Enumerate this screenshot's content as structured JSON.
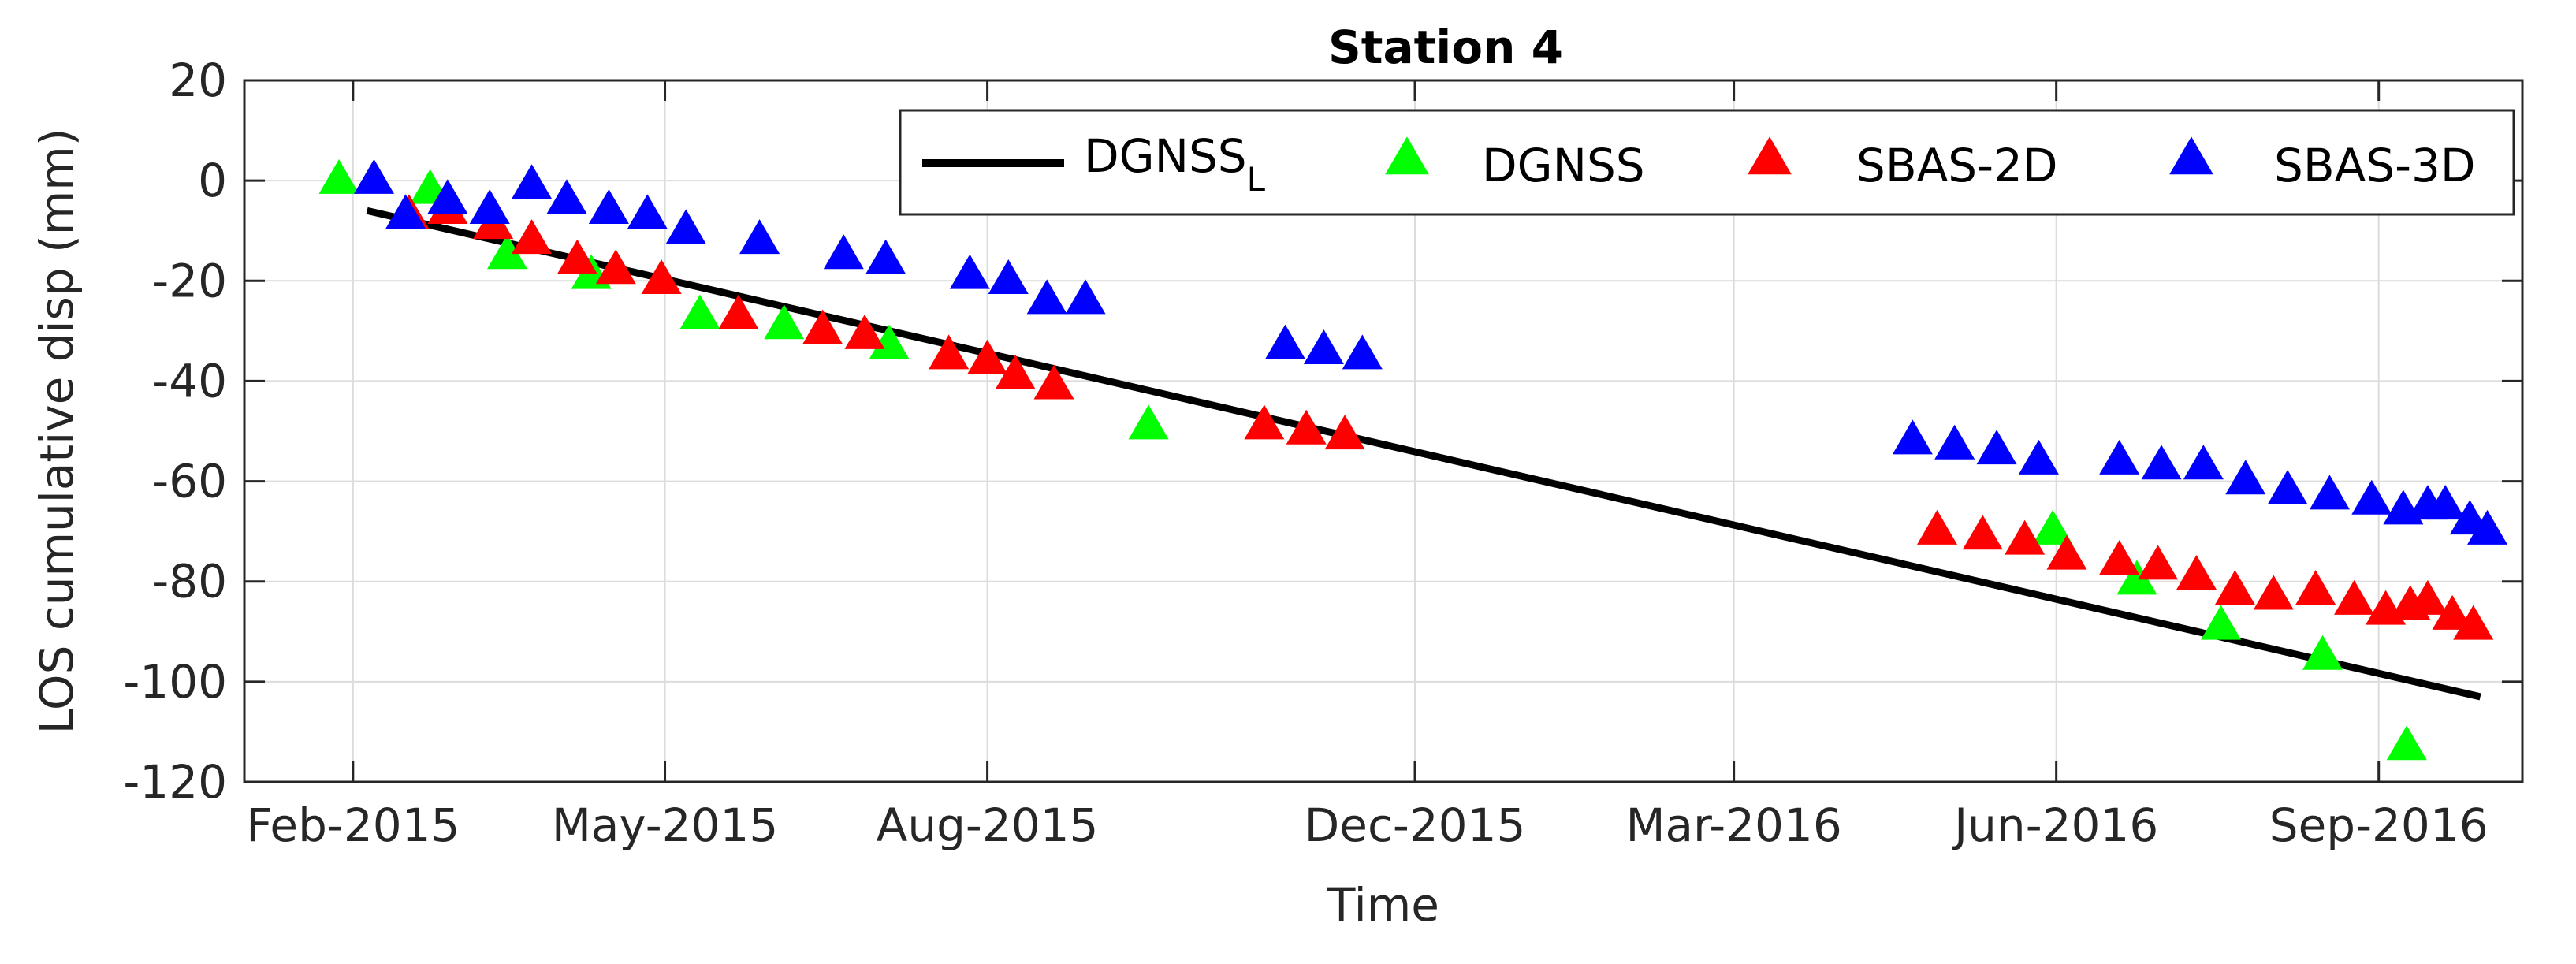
{
  "chart_data": {
    "type": "scatter",
    "title": "Station 4",
    "xlabel": "Time",
    "ylabel": "LOS cumulative disp (mm)",
    "x_axis": "date",
    "xlim": [
      "2015-01-01",
      "2016-10-12"
    ],
    "ylim": [
      -120,
      20
    ],
    "grid": true,
    "legend_placement": "top-right",
    "x_ticks": [
      {
        "date": "2015-02-01",
        "label": "Feb-2015"
      },
      {
        "date": "2015-05-01",
        "label": "May-2015"
      },
      {
        "date": "2015-08-01",
        "label": "Aug-2015"
      },
      {
        "date": "2015-12-01",
        "label": "Dec-2015"
      },
      {
        "date": "2016-03-01",
        "label": "Mar-2016"
      },
      {
        "date": "2016-06-01",
        "label": "Jun-2016"
      },
      {
        "date": "2016-09-01",
        "label": "Sep-2016"
      }
    ],
    "y_ticks": [
      20,
      0,
      -20,
      -40,
      -60,
      -80,
      -100,
      -120
    ],
    "legend": [
      {
        "name": "DGNSS",
        "subscript": "L",
        "marker": "line"
      },
      {
        "name": "DGNSS",
        "marker": "triangle"
      },
      {
        "name": "SBAS-2D",
        "marker": "triangle"
      },
      {
        "name": "SBAS-3D",
        "marker": "triangle"
      }
    ],
    "series": [
      {
        "name": "DGNSS_L",
        "kind": "line",
        "color": "#000000",
        "points": [
          {
            "x": "2015-02-05",
            "y": -6
          },
          {
            "x": "2016-09-30",
            "y": -103
          }
        ]
      },
      {
        "name": "DGNSS",
        "kind": "marker",
        "color": "#00ff00",
        "points": [
          {
            "x": "2015-01-28",
            "y": 0
          },
          {
            "x": "2015-02-23",
            "y": -2
          },
          {
            "x": "2015-03-17",
            "y": -15
          },
          {
            "x": "2015-04-10",
            "y": -19
          },
          {
            "x": "2015-05-11",
            "y": -27
          },
          {
            "x": "2015-06-04",
            "y": -29
          },
          {
            "x": "2015-07-04",
            "y": -33
          },
          {
            "x": "2015-09-16",
            "y": -49
          },
          {
            "x": "2016-05-31",
            "y": -70
          },
          {
            "x": "2016-06-24",
            "y": -80
          },
          {
            "x": "2016-07-18",
            "y": -89
          },
          {
            "x": "2016-08-16",
            "y": -95
          },
          {
            "x": "2016-09-09",
            "y": -113
          }
        ]
      },
      {
        "name": "SBAS-2D",
        "kind": "marker",
        "color": "#ff0000",
        "points": [
          {
            "x": "2015-02-17",
            "y": -7
          },
          {
            "x": "2015-02-28",
            "y": -6
          },
          {
            "x": "2015-03-13",
            "y": -9
          },
          {
            "x": "2015-03-24",
            "y": -12
          },
          {
            "x": "2015-04-06",
            "y": -16
          },
          {
            "x": "2015-04-17",
            "y": -18
          },
          {
            "x": "2015-04-30",
            "y": -20
          },
          {
            "x": "2015-05-22",
            "y": -27
          },
          {
            "x": "2015-06-15",
            "y": -30
          },
          {
            "x": "2015-06-27",
            "y": -31
          },
          {
            "x": "2015-07-21",
            "y": -35
          },
          {
            "x": "2015-08-01",
            "y": -36
          },
          {
            "x": "2015-08-09",
            "y": -39
          },
          {
            "x": "2015-08-20",
            "y": -41
          },
          {
            "x": "2015-10-19",
            "y": -49
          },
          {
            "x": "2015-10-31",
            "y": -50
          },
          {
            "x": "2015-11-11",
            "y": -51
          },
          {
            "x": "2016-04-28",
            "y": -70
          },
          {
            "x": "2016-05-11",
            "y": -71
          },
          {
            "x": "2016-05-23",
            "y": -72
          },
          {
            "x": "2016-06-04",
            "y": -75
          },
          {
            "x": "2016-06-19",
            "y": -76
          },
          {
            "x": "2016-06-30",
            "y": -77
          },
          {
            "x": "2016-07-11",
            "y": -79
          },
          {
            "x": "2016-07-22",
            "y": -82
          },
          {
            "x": "2016-08-02",
            "y": -83
          },
          {
            "x": "2016-08-14",
            "y": -82
          },
          {
            "x": "2016-08-25",
            "y": -84
          },
          {
            "x": "2016-09-03",
            "y": -86
          },
          {
            "x": "2016-09-10",
            "y": -85
          },
          {
            "x": "2016-09-15",
            "y": -84
          },
          {
            "x": "2016-09-22",
            "y": -87
          },
          {
            "x": "2016-09-28",
            "y": -89
          }
        ]
      },
      {
        "name": "SBAS-3D",
        "kind": "marker",
        "color": "#0000ff",
        "points": [
          {
            "x": "2015-02-07",
            "y": 0
          },
          {
            "x": "2015-02-16",
            "y": -7
          },
          {
            "x": "2015-02-28",
            "y": -4
          },
          {
            "x": "2015-03-12",
            "y": -6
          },
          {
            "x": "2015-03-24",
            "y": -1
          },
          {
            "x": "2015-04-03",
            "y": -4
          },
          {
            "x": "2015-04-15",
            "y": -6
          },
          {
            "x": "2015-04-26",
            "y": -7
          },
          {
            "x": "2015-05-07",
            "y": -10
          },
          {
            "x": "2015-05-28",
            "y": -12
          },
          {
            "x": "2015-06-21",
            "y": -15
          },
          {
            "x": "2015-07-03",
            "y": -16
          },
          {
            "x": "2015-07-27",
            "y": -19
          },
          {
            "x": "2015-08-07",
            "y": -20
          },
          {
            "x": "2015-08-18",
            "y": -24
          },
          {
            "x": "2015-08-29",
            "y": -24
          },
          {
            "x": "2015-10-25",
            "y": -33
          },
          {
            "x": "2015-11-05",
            "y": -34
          },
          {
            "x": "2015-11-16",
            "y": -35
          },
          {
            "x": "2016-04-21",
            "y": -52
          },
          {
            "x": "2016-05-03",
            "y": -53
          },
          {
            "x": "2016-05-15",
            "y": -54
          },
          {
            "x": "2016-05-27",
            "y": -56
          },
          {
            "x": "2016-06-19",
            "y": -56
          },
          {
            "x": "2016-07-01",
            "y": -57
          },
          {
            "x": "2016-07-13",
            "y": -57
          },
          {
            "x": "2016-07-25",
            "y": -60
          },
          {
            "x": "2016-08-06",
            "y": -62
          },
          {
            "x": "2016-08-18",
            "y": -63
          },
          {
            "x": "2016-08-30",
            "y": -64
          },
          {
            "x": "2016-09-08",
            "y": -66
          },
          {
            "x": "2016-09-15",
            "y": -65
          },
          {
            "x": "2016-09-20",
            "y": -65
          },
          {
            "x": "2016-09-27",
            "y": -68
          },
          {
            "x": "2016-10-02",
            "y": -70
          }
        ]
      }
    ]
  }
}
